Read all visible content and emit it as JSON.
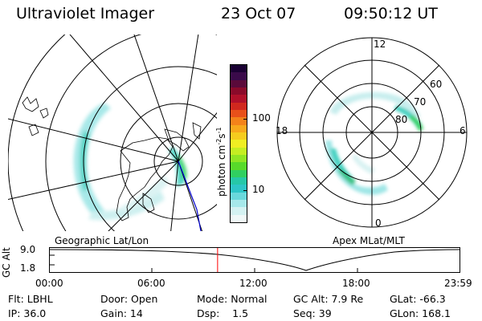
{
  "header": {
    "title": "Ultraviolet Imager",
    "date": "23 Oct 07",
    "time": "09:50:12 UT"
  },
  "geo_panel": {
    "label": "Geographic Lat/Lon"
  },
  "apex_panel": {
    "label": "Apex MLat/MLT",
    "mlt_labels": [
      "12",
      "18",
      "6",
      "0"
    ],
    "mlat_labels": [
      "60",
      "70",
      "80"
    ]
  },
  "colorbar": {
    "unit_label": "photon cm",
    "unit_exp1": "-2",
    "unit_s": "s",
    "unit_exp2": "-1",
    "ticks": [
      "100",
      "10"
    ],
    "colors": [
      "#1a0033",
      "#3a0a4a",
      "#5a0a3a",
      "#8a0a2a",
      "#b0102a",
      "#d0281e",
      "#e8501a",
      "#f4821a",
      "#f8a81c",
      "#f6cc1e",
      "#f0ee22",
      "#c4ee22",
      "#90e624",
      "#58da2a",
      "#30cf60",
      "#26c8a8",
      "#2ec6c8",
      "#6ad8dc",
      "#a6e8ea",
      "#d4f2f2",
      "#f0f8f8"
    ]
  },
  "altitude_plot": {
    "ylabel": "GC Alt",
    "ymax_label": "9.0",
    "ymin_label": "1.8",
    "xticks": [
      "00:00",
      "06:00",
      "12:00",
      "18:00",
      "23:59"
    ],
    "current_time_hours": 9.837
  },
  "footer": {
    "row1": [
      "Flt: LBHL",
      "Door: Open",
      "Mode: Normal",
      "GC Alt: 7.9 Re",
      "GLat: -66.3"
    ],
    "row2": [
      "IP: 36.0",
      "Gain: 14",
      "Dsp:    1.5",
      "Seq: 39",
      "GLon: 168.1"
    ]
  },
  "colors": {
    "cursor": "#ff0000",
    "vector": "#0000cc",
    "aurora_low": "#9fe6e6",
    "aurora_mid": "#3fd0c0",
    "aurora_high": "#30d060"
  }
}
